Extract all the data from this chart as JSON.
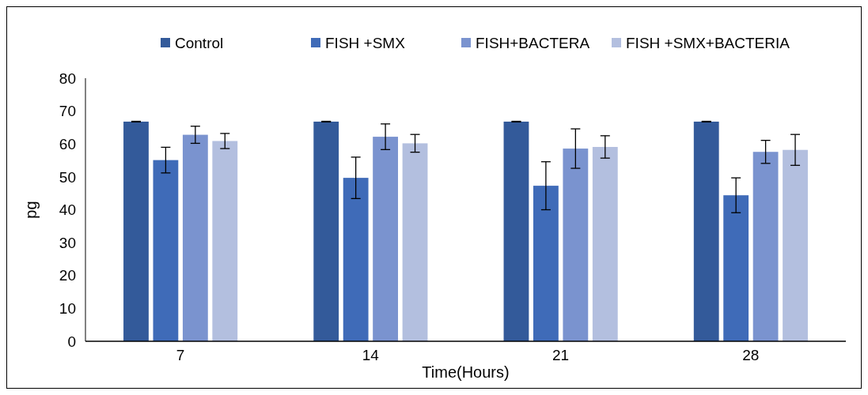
{
  "chart_data": {
    "type": "bar",
    "xlabel": "Time(Hours)",
    "ylabel": "pg",
    "categories": [
      "7",
      "14",
      "21",
      "28"
    ],
    "series": [
      {
        "name": "Control",
        "color": "#335a9a",
        "values": [
          66.8,
          66.8,
          66.8,
          66.8
        ],
        "errors": [
          0.1,
          0.1,
          0.1,
          0.1
        ]
      },
      {
        "name": "FISH +SMX",
        "color": "#3f6bb8",
        "values": [
          55.1,
          49.7,
          47.3,
          44.4
        ],
        "errors": [
          3.9,
          6.3,
          7.3,
          5.3
        ]
      },
      {
        "name": "FISH+BACTERA",
        "color": "#7a93cf",
        "values": [
          62.8,
          62.2,
          58.6,
          57.6
        ],
        "errors": [
          2.6,
          3.9,
          6.0,
          3.5
        ]
      },
      {
        "name": "FISH +SMX+BACTERIA",
        "color": "#b3bfdf",
        "values": [
          60.9,
          60.2,
          59.1,
          58.2
        ],
        "errors": [
          2.3,
          2.7,
          3.4,
          4.7
        ]
      }
    ],
    "ylim": [
      0,
      80
    ],
    "yticks": [
      0,
      10,
      20,
      30,
      40,
      50,
      60,
      70,
      80
    ],
    "grid": false,
    "legend": "top"
  }
}
